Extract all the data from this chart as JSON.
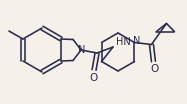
{
  "background_color": "#f5f0e8",
  "line_color": "#2a2a50",
  "line_width": 1.15,
  "figsize": [
    1.87,
    1.04
  ],
  "dpi": 100,
  "xlim": [
    0,
    187
  ],
  "ylim": [
    0,
    104
  ]
}
